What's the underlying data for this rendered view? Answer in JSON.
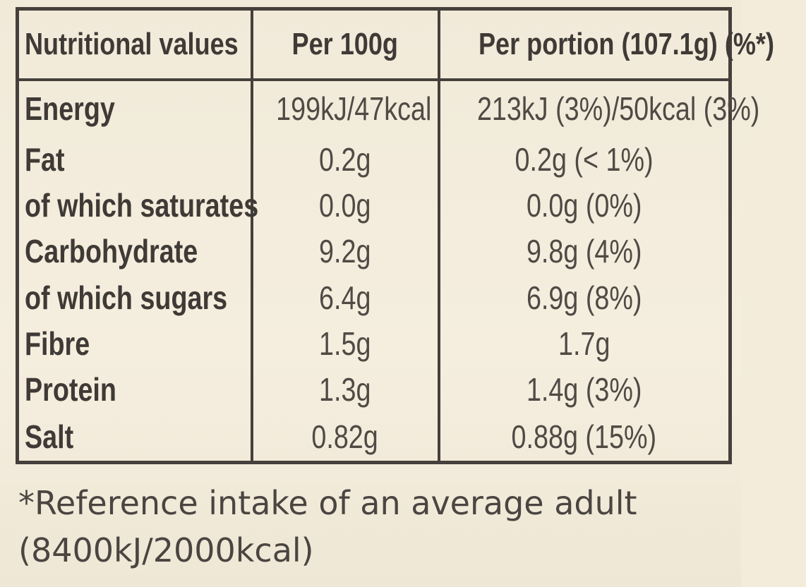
{
  "table": {
    "header": {
      "name": "Nutritional values",
      "per100": "Per 100g",
      "perPortion": "Per portion (107.1g) (%*)"
    },
    "rows": [
      {
        "name": "Energy",
        "per100": "199kJ/47kcal",
        "perPortion": "213kJ (3%)/50kcal (3%)"
      },
      {
        "name": "Fat",
        "per100": "0.2g",
        "perPortion": "0.2g (< 1%)"
      },
      {
        "name": "of which saturates",
        "per100": "0.0g",
        "perPortion": "0.0g (0%)"
      },
      {
        "name": "Carbohydrate",
        "per100": "9.2g",
        "perPortion": "9.8g (4%)"
      },
      {
        "name": "of which sugars",
        "per100": "6.4g",
        "perPortion": "6.9g (8%)"
      },
      {
        "name": "Fibre",
        "per100": "1.5g",
        "perPortion": "1.7g"
      },
      {
        "name": "Protein",
        "per100": "1.3g",
        "perPortion": "1.4g (3%)"
      },
      {
        "name": "Salt",
        "per100": "0.82g",
        "perPortion": "0.88g (15%)"
      }
    ]
  },
  "footnote": {
    "line1": "*Reference intake of an average adult",
    "line2": "(8400kJ/2000kcal)"
  }
}
